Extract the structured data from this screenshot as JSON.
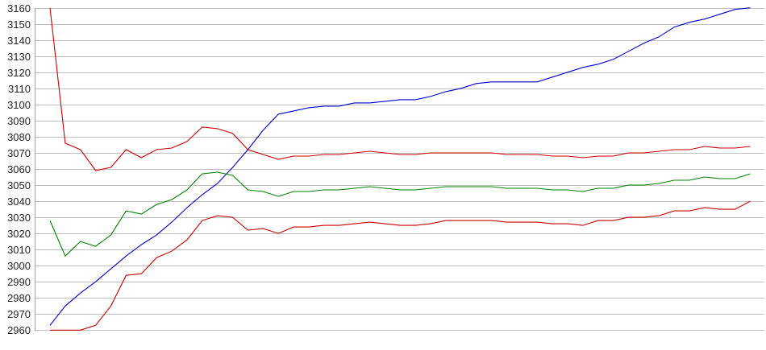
{
  "chart_data": {
    "type": "line",
    "title": "",
    "xlabel": "",
    "ylabel": "",
    "ylim": [
      2960,
      3160
    ],
    "yticks": [
      3160,
      3150,
      3140,
      3130,
      3120,
      3110,
      3100,
      3090,
      3080,
      3070,
      3060,
      3050,
      3040,
      3030,
      3020,
      3010,
      3000,
      2990,
      2980,
      2970,
      2960
    ],
    "grid": true,
    "legend": "none",
    "series": [
      {
        "color": "#0000cc",
        "values": [
          2963,
          2975,
          2983,
          2990,
          2998,
          3006,
          3013,
          3019,
          3027,
          3036,
          3044,
          3051,
          3061,
          3072,
          3084,
          3094,
          3096,
          3098,
          3099,
          3099,
          3101,
          3101,
          3102,
          3103,
          3103,
          3105,
          3108,
          3110,
          3113,
          3114,
          3114,
          3114,
          3114,
          3117,
          3120,
          3123,
          3125,
          3128,
          3133,
          3138,
          3142,
          3148,
          3151,
          3153,
          3156,
          3159,
          3160
        ]
      },
      {
        "color": "#cc0000",
        "values": [
          3160,
          3076,
          3072,
          3059,
          3061,
          3072,
          3067,
          3072,
          3073,
          3077,
          3086,
          3085,
          3082,
          3072,
          3069,
          3066,
          3068,
          3068,
          3069,
          3069,
          3070,
          3071,
          3070,
          3069,
          3069,
          3070,
          3070,
          3070,
          3070,
          3070,
          3069,
          3069,
          3069,
          3068,
          3068,
          3067,
          3068,
          3068,
          3070,
          3070,
          3071,
          3072,
          3072,
          3074,
          3073,
          3073,
          3074
        ]
      },
      {
        "color": "#008000",
        "values": [
          3028,
          3006,
          3015,
          3012,
          3019,
          3034,
          3032,
          3038,
          3041,
          3047,
          3057,
          3058,
          3056,
          3047,
          3046,
          3043,
          3046,
          3046,
          3047,
          3047,
          3048,
          3049,
          3048,
          3047,
          3047,
          3048,
          3049,
          3049,
          3049,
          3049,
          3048,
          3048,
          3048,
          3047,
          3047,
          3046,
          3048,
          3048,
          3050,
          3050,
          3051,
          3053,
          3053,
          3055,
          3054,
          3054,
          3057
        ]
      },
      {
        "color": "#cc0000",
        "values": [
          2960,
          2960,
          2960,
          2963,
          2975,
          2994,
          2995,
          3005,
          3009,
          3016,
          3028,
          3031,
          3030,
          3022,
          3023,
          3020,
          3024,
          3024,
          3025,
          3025,
          3026,
          3027,
          3026,
          3025,
          3025,
          3026,
          3028,
          3028,
          3028,
          3028,
          3027,
          3027,
          3027,
          3026,
          3026,
          3025,
          3028,
          3028,
          3030,
          3030,
          3031,
          3034,
          3034,
          3036,
          3035,
          3035,
          3040
        ]
      }
    ]
  },
  "colors": {
    "grid": "#c0c0c0",
    "axis": "#a0a0a0"
  }
}
